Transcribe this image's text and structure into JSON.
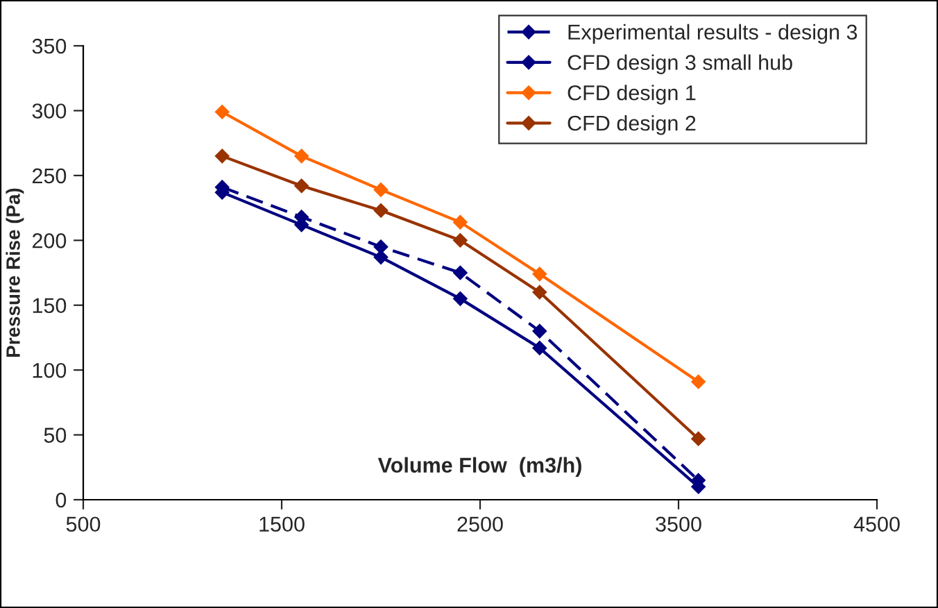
{
  "chart_data": {
    "type": "line",
    "xlabel": "Volume Flow  (m3/h)",
    "ylabel": "Pressure Rise (Pa)",
    "x": [
      1200,
      1600,
      2000,
      2400,
      2800,
      3600
    ],
    "series": [
      {
        "name": "Experimental results - design 3",
        "color": "#000080",
        "line_style": "dashed",
        "values": [
          241,
          218,
          195,
          175,
          130,
          15
        ]
      },
      {
        "name": "CFD design 3 small hub",
        "color": "#000080",
        "line_style": "solid",
        "values": [
          237,
          212,
          187,
          155,
          117,
          10
        ]
      },
      {
        "name": "CFD design 1",
        "color": "#ff6600",
        "line_style": "solid",
        "values": [
          299,
          265,
          239,
          214,
          174,
          91
        ]
      },
      {
        "name": "CFD design 2",
        "color": "#993300",
        "line_style": "solid",
        "values": [
          265,
          242,
          223,
          200,
          160,
          47
        ]
      }
    ],
    "marker": "diamond",
    "xlim": [
      500,
      4500
    ],
    "xticks": [
      500,
      1500,
      2500,
      3500,
      4500
    ],
    "ylim": [
      0,
      350
    ],
    "yticks": [
      0,
      50,
      100,
      150,
      200,
      250,
      300,
      350
    ],
    "grid": false,
    "legend": "top right"
  }
}
